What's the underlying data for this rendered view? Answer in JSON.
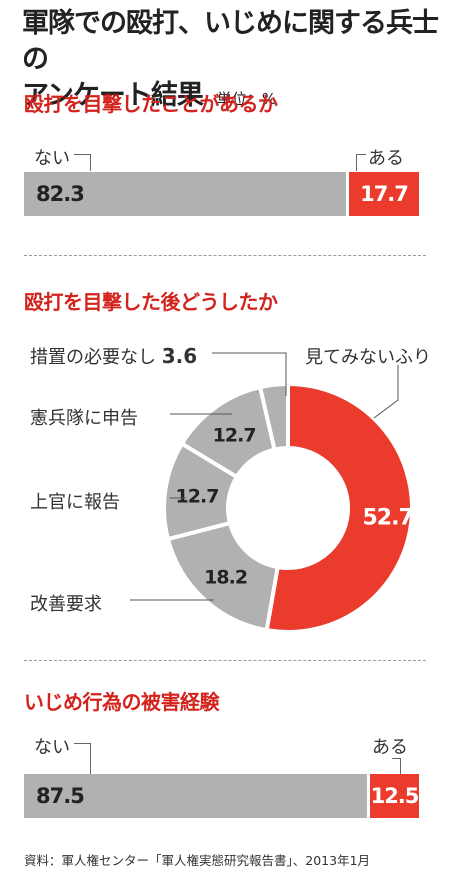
{
  "title": "軍隊での殴打、いじめに関する兵士のアンケート結果",
  "title_line1": "軍隊での殴打、いじめに関する兵士の",
  "title_line2": "アンケート結果",
  "unit": "単位：%",
  "source": "資料：軍人権センター「軍人権実態研究報告書」、2013年1月",
  "colors": {
    "red": "#ea3b2c",
    "gray": "#b1b1b1",
    "section_red": "#d4231d"
  },
  "chart_data": [
    {
      "type": "bar",
      "title": "殴打を目撃したことがあるか",
      "stacked": true,
      "categories": [
        "ない",
        "ある"
      ],
      "values": [
        82.3,
        17.7
      ],
      "value_labels": [
        "82.3",
        "17.7"
      ],
      "colors": [
        "#b1b1b1",
        "#ea3b2c"
      ]
    },
    {
      "type": "pie",
      "title": "殴打を目撃した後どうしたか",
      "donut": true,
      "labels": [
        "見てみないふり",
        "改善要求",
        "上官に報告",
        "憲兵隊に申告",
        "措置の必要なし"
      ],
      "values": [
        52.7,
        18.2,
        12.7,
        12.7,
        3.6
      ],
      "value_labels": [
        "52.7",
        "18.2",
        "12.7",
        "12.7",
        "3.6"
      ],
      "colors": [
        "#ea3b2c",
        "#b1b1b1",
        "#b1b1b1",
        "#b1b1b1",
        "#b1b1b1"
      ]
    },
    {
      "type": "bar",
      "title": "いじめ行為の被害経験",
      "stacked": true,
      "categories": [
        "ない",
        "ある"
      ],
      "values": [
        87.5,
        12.5
      ],
      "value_labels": [
        "87.5",
        "12.5"
      ],
      "colors": [
        "#b1b1b1",
        "#ea3b2c"
      ]
    }
  ]
}
